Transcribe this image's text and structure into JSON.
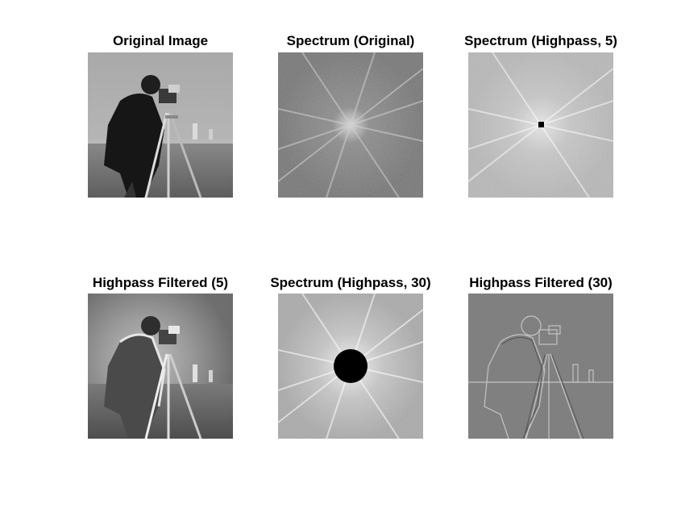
{
  "figure": {
    "background": "#ffffff",
    "panels": [
      {
        "title": "Original Image"
      },
      {
        "title": "Spectrum (Original)"
      },
      {
        "title": "Spectrum (Highpass, 5)"
      },
      {
        "title": "Highpass Filtered (5)"
      },
      {
        "title": "Spectrum (Highpass, 30)"
      },
      {
        "title": "Highpass Filtered (30)"
      }
    ]
  }
}
